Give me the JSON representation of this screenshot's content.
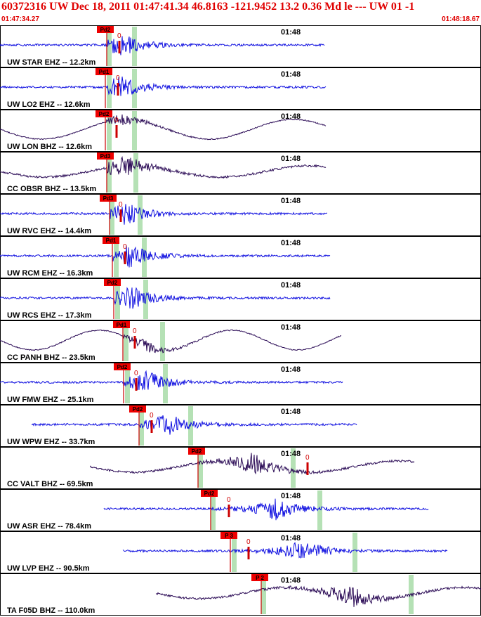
{
  "header": {
    "title": "60372316 UW Dec 18, 2011 01:47:41.34   46.8163 -121.9452 13.2 0.36 Md le --- UW 01   -1",
    "start_time": "01:47:34.27",
    "end_time": "01:48:18.67"
  },
  "colors": {
    "header_text": "#e00000",
    "ehz_trace": "#1010e0",
    "bhz_trace": "#2a0a55",
    "pick_box": "#ee0000",
    "window_band": "#a8dca8",
    "marker_line": "#cc0000"
  },
  "chart_data": {
    "type": "seismogram",
    "x_unit": "time",
    "time_tick_label": "01:48",
    "panels": [
      {
        "label": "UW STAR EHZ -- 12.2km",
        "component": "EHZ",
        "pick": "Pd2",
        "zero_mark": "0",
        "dist_km": 12.2
      },
      {
        "label": "UW LO2 EHZ -- 12.6km",
        "component": "EHZ",
        "pick": "Pd1",
        "zero_mark": "0",
        "dist_km": 12.6
      },
      {
        "label": "UW LON BHZ -- 12.6km",
        "component": "BHZ",
        "pick": "Pd2",
        "zero_mark": "0",
        "dist_km": 12.6
      },
      {
        "label": "CC OBSR BHZ -- 13.5km",
        "component": "BHZ",
        "pick": "Pd3",
        "zero_mark": "",
        "dist_km": 13.5
      },
      {
        "label": "UW RVC EHZ -- 14.4km",
        "component": "EHZ",
        "pick": "Pd3",
        "zero_mark": "0",
        "dist_km": 14.4
      },
      {
        "label": "UW RCM EHZ -- 16.3km",
        "component": "EHZ",
        "pick": "Pd1",
        "zero_mark": "0",
        "dist_km": 16.3
      },
      {
        "label": "UW RCS EHZ -- 17.3km",
        "component": "EHZ",
        "pick": "Pd2",
        "zero_mark": "",
        "dist_km": 17.3
      },
      {
        "label": "CC PANH BHZ -- 23.5km",
        "component": "BHZ",
        "pick": "Pd1",
        "zero_mark": "0",
        "dist_km": 23.5
      },
      {
        "label": "UW FMW EHZ -- 25.1km",
        "component": "EHZ",
        "pick": "Pd2",
        "zero_mark": "0",
        "dist_km": 25.1
      },
      {
        "label": "UW WPW EHZ -- 33.7km",
        "component": "EHZ",
        "pick": "Pd2",
        "zero_mark": "0",
        "dist_km": 33.7
      },
      {
        "label": "CC VALT BHZ -- 69.5km",
        "component": "BHZ",
        "pick": "Pd2",
        "zero_mark": "0",
        "dist_km": 69.5
      },
      {
        "label": "UW ASR EHZ -- 78.4km",
        "component": "EHZ",
        "pick": "Pd2",
        "zero_mark": "0",
        "dist_km": 78.4
      },
      {
        "label": "UW LVP EHZ -- 90.5km",
        "component": "EHZ",
        "pick": "P 3",
        "zero_mark": "0",
        "dist_km": 90.5
      },
      {
        "label": "TA F05D BHZ -- 110.0km",
        "component": "BHZ",
        "pick": "P 2",
        "zero_mark": "",
        "dist_km": 110.0
      }
    ]
  }
}
